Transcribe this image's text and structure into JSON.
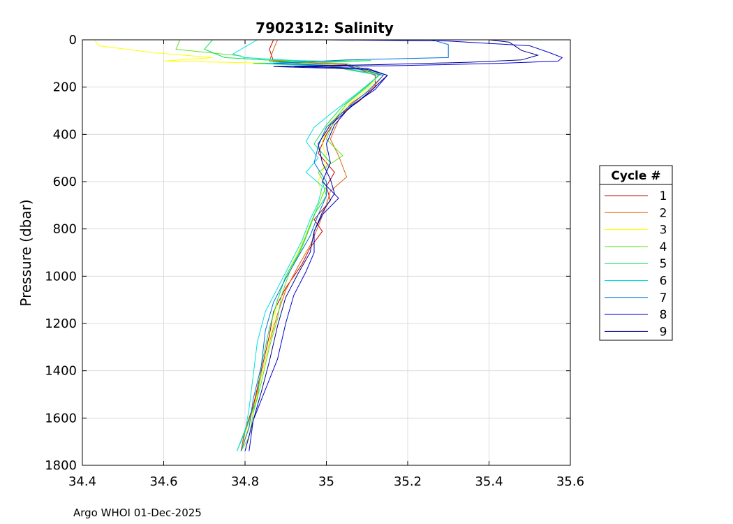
{
  "chart_data": {
    "type": "line",
    "title": "7902312:  Salinity",
    "xlabel": "",
    "ylabel": "Pressure (dbar)",
    "xlim": [
      34.4,
      35.6
    ],
    "ylim": [
      0,
      1800
    ],
    "y_reversed": true,
    "grid": true,
    "xticks": [
      "34.4",
      "34.6",
      "34.8",
      "35",
      "35.2",
      "35.4",
      "35.6"
    ],
    "yticks": [
      "0",
      "200",
      "400",
      "600",
      "800",
      "1000",
      "1200",
      "1400",
      "1600",
      "1800"
    ],
    "legend": {
      "title": "Cycle #",
      "placement": "right-outside"
    },
    "series": [
      {
        "name": "1",
        "color": "#c00000",
        "points": [
          [
            34.87,
            0
          ],
          [
            34.86,
            40
          ],
          [
            34.87,
            90
          ],
          [
            35.05,
            105
          ],
          [
            35.12,
            150
          ],
          [
            35.12,
            200
          ],
          [
            35.08,
            260
          ],
          [
            35.03,
            320
          ],
          [
            35.0,
            400
          ],
          [
            34.98,
            480
          ],
          [
            35.02,
            560
          ],
          [
            35.0,
            620
          ],
          [
            35.01,
            680
          ],
          [
            34.97,
            760
          ],
          [
            34.99,
            810
          ],
          [
            34.96,
            880
          ],
          [
            34.94,
            950
          ],
          [
            34.9,
            1050
          ],
          [
            34.87,
            1150
          ],
          [
            34.86,
            1250
          ],
          [
            34.84,
            1400
          ],
          [
            34.82,
            1550
          ],
          [
            34.8,
            1650
          ],
          [
            34.79,
            1740
          ]
        ]
      },
      {
        "name": "2",
        "color": "#e06010",
        "points": [
          [
            34.88,
            0
          ],
          [
            34.87,
            40
          ],
          [
            34.86,
            90
          ],
          [
            35.0,
            108
          ],
          [
            35.14,
            150
          ],
          [
            35.11,
            210
          ],
          [
            35.06,
            270
          ],
          [
            35.03,
            340
          ],
          [
            35.01,
            420
          ],
          [
            35.03,
            490
          ],
          [
            35.05,
            580
          ],
          [
            35.01,
            640
          ],
          [
            35.0,
            700
          ],
          [
            34.98,
            790
          ],
          [
            34.96,
            870
          ],
          [
            34.93,
            960
          ],
          [
            34.9,
            1060
          ],
          [
            34.88,
            1160
          ],
          [
            34.86,
            1280
          ],
          [
            34.84,
            1420
          ],
          [
            34.82,
            1560
          ],
          [
            34.8,
            1660
          ],
          [
            34.79,
            1740
          ]
        ]
      },
      {
        "name": "3",
        "color": "#ffff00",
        "points": [
          [
            34.43,
            0
          ],
          [
            34.44,
            25
          ],
          [
            34.58,
            55
          ],
          [
            34.72,
            75
          ],
          [
            34.6,
            90
          ],
          [
            34.85,
            98
          ],
          [
            35.05,
            108
          ],
          [
            35.13,
            150
          ],
          [
            35.1,
            210
          ],
          [
            35.05,
            280
          ],
          [
            35.01,
            350
          ],
          [
            34.99,
            430
          ],
          [
            35.0,
            510
          ],
          [
            34.98,
            600
          ],
          [
            34.99,
            660
          ],
          [
            34.97,
            740
          ],
          [
            34.95,
            820
          ],
          [
            34.93,
            900
          ],
          [
            34.9,
            1000
          ],
          [
            34.88,
            1100
          ],
          [
            34.87,
            1200
          ],
          [
            34.85,
            1350
          ],
          [
            34.83,
            1500
          ],
          [
            34.81,
            1630
          ],
          [
            34.79,
            1740
          ]
        ]
      },
      {
        "name": "4",
        "color": "#60e020",
        "points": [
          [
            34.64,
            0
          ],
          [
            34.63,
            40
          ],
          [
            34.79,
            68
          ],
          [
            34.8,
            80
          ],
          [
            34.9,
            90
          ],
          [
            35.05,
            100
          ],
          [
            35.13,
            145
          ],
          [
            35.1,
            200
          ],
          [
            35.05,
            270
          ],
          [
            35.02,
            340
          ],
          [
            35.0,
            420
          ],
          [
            35.04,
            490
          ],
          [
            34.98,
            560
          ],
          [
            35.0,
            620
          ],
          [
            34.98,
            700
          ],
          [
            34.96,
            790
          ],
          [
            34.94,
            880
          ],
          [
            34.91,
            980
          ],
          [
            34.89,
            1080
          ],
          [
            34.88,
            1180
          ],
          [
            34.86,
            1300
          ],
          [
            34.84,
            1450
          ],
          [
            34.82,
            1580
          ],
          [
            34.81,
            1680
          ],
          [
            34.79,
            1740
          ]
        ]
      },
      {
        "name": "5",
        "color": "#10e060",
        "points": [
          [
            34.72,
            0
          ],
          [
            34.7,
            40
          ],
          [
            34.75,
            75
          ],
          [
            34.85,
            85
          ],
          [
            35.0,
            90
          ],
          [
            35.11,
            88
          ],
          [
            34.98,
            95
          ],
          [
            34.82,
            100
          ],
          [
            35.0,
            110
          ],
          [
            35.13,
            150
          ],
          [
            35.09,
            210
          ],
          [
            35.04,
            280
          ],
          [
            35.0,
            360
          ],
          [
            34.97,
            440
          ],
          [
            35.01,
            520
          ],
          [
            34.99,
            600
          ],
          [
            35.0,
            660
          ],
          [
            34.97,
            740
          ],
          [
            34.95,
            830
          ],
          [
            34.93,
            910
          ],
          [
            34.9,
            1000
          ],
          [
            34.88,
            1100
          ],
          [
            34.86,
            1220
          ],
          [
            34.84,
            1380
          ],
          [
            34.83,
            1520
          ],
          [
            34.8,
            1650
          ],
          [
            34.78,
            1740
          ]
        ]
      },
      {
        "name": "6",
        "color": "#00e0e0",
        "points": [
          [
            34.83,
            0
          ],
          [
            34.8,
            30
          ],
          [
            34.77,
            60
          ],
          [
            34.8,
            75
          ],
          [
            34.95,
            90
          ],
          [
            34.85,
            100
          ],
          [
            35.02,
            110
          ],
          [
            35.13,
            150
          ],
          [
            35.08,
            220
          ],
          [
            35.02,
            300
          ],
          [
            34.97,
            370
          ],
          [
            34.95,
            430
          ],
          [
            34.98,
            500
          ],
          [
            34.95,
            560
          ],
          [
            34.99,
            620
          ],
          [
            34.98,
            690
          ],
          [
            34.96,
            760
          ],
          [
            34.94,
            850
          ],
          [
            34.91,
            950
          ],
          [
            34.88,
            1050
          ],
          [
            34.85,
            1150
          ],
          [
            34.83,
            1280
          ],
          [
            34.82,
            1420
          ],
          [
            34.81,
            1560
          ],
          [
            34.8,
            1660
          ],
          [
            34.78,
            1740
          ]
        ]
      },
      {
        "name": "7",
        "color": "#0070e0",
        "points": [
          [
            35.26,
            0
          ],
          [
            35.3,
            20
          ],
          [
            35.3,
            75
          ],
          [
            35.05,
            85
          ],
          [
            34.87,
            100
          ],
          [
            35.05,
            110
          ],
          [
            35.14,
            150
          ],
          [
            35.1,
            220
          ],
          [
            35.05,
            290
          ],
          [
            35.0,
            370
          ],
          [
            34.98,
            450
          ],
          [
            34.97,
            520
          ],
          [
            35.0,
            600
          ],
          [
            35.0,
            660
          ],
          [
            34.98,
            740
          ],
          [
            34.96,
            830
          ],
          [
            34.93,
            920
          ],
          [
            34.9,
            1010
          ],
          [
            34.87,
            1110
          ],
          [
            34.85,
            1230
          ],
          [
            34.84,
            1380
          ],
          [
            34.82,
            1520
          ],
          [
            34.81,
            1640
          ],
          [
            34.79,
            1740
          ]
        ]
      },
      {
        "name": "8",
        "color": "#0000d0",
        "points": [
          [
            34.99,
            0
          ],
          [
            35.3,
            5
          ],
          [
            35.5,
            25
          ],
          [
            35.55,
            55
          ],
          [
            35.58,
            75
          ],
          [
            35.57,
            90
          ],
          [
            35.42,
            100
          ],
          [
            35.15,
            110
          ],
          [
            34.92,
            113
          ],
          [
            35.1,
            120
          ],
          [
            35.15,
            150
          ],
          [
            35.12,
            210
          ],
          [
            35.06,
            280
          ],
          [
            35.02,
            360
          ],
          [
            35.0,
            440
          ],
          [
            35.01,
            520
          ],
          [
            34.99,
            600
          ],
          [
            35.03,
            670
          ],
          [
            34.99,
            740
          ],
          [
            34.97,
            810
          ],
          [
            34.97,
            900
          ],
          [
            34.95,
            980
          ],
          [
            34.92,
            1080
          ],
          [
            34.9,
            1200
          ],
          [
            34.88,
            1350
          ],
          [
            34.85,
            1480
          ],
          [
            34.82,
            1610
          ],
          [
            34.81,
            1740
          ]
        ]
      },
      {
        "name": "9",
        "color": "#000090",
        "points": [
          [
            35.4,
            0
          ],
          [
            35.45,
            10
          ],
          [
            35.48,
            45
          ],
          [
            35.52,
            65
          ],
          [
            35.48,
            85
          ],
          [
            35.35,
            95
          ],
          [
            35.13,
            105
          ],
          [
            34.87,
            113
          ],
          [
            35.1,
            125
          ],
          [
            35.15,
            150
          ],
          [
            35.11,
            215
          ],
          [
            35.06,
            285
          ],
          [
            35.01,
            360
          ],
          [
            34.98,
            440
          ],
          [
            34.99,
            520
          ],
          [
            35.01,
            590
          ],
          [
            35.02,
            650
          ],
          [
            34.99,
            730
          ],
          [
            34.97,
            810
          ],
          [
            34.96,
            900
          ],
          [
            34.93,
            990
          ],
          [
            34.9,
            1090
          ],
          [
            34.88,
            1210
          ],
          [
            34.86,
            1360
          ],
          [
            34.84,
            1490
          ],
          [
            34.82,
            1610
          ],
          [
            34.8,
            1740
          ]
        ]
      }
    ]
  },
  "footer": "Argo WHOI 01-Dec-2025"
}
